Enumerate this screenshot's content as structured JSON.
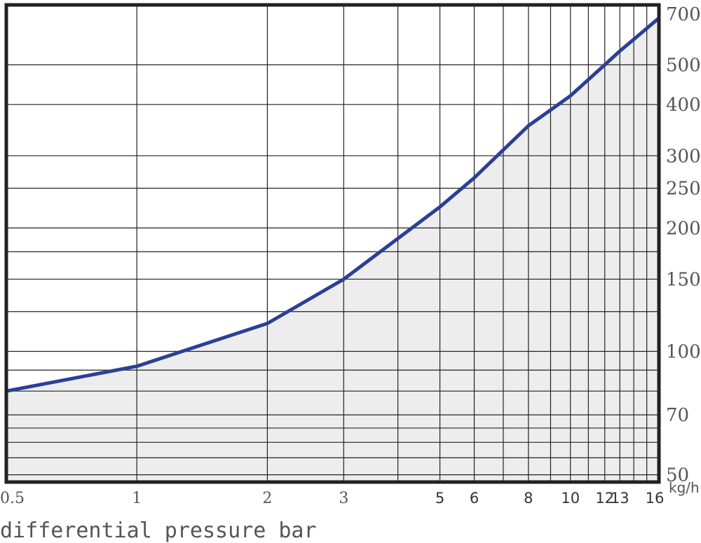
{
  "chart_data": {
    "type": "area",
    "x_scale": "log",
    "y_scale": "log",
    "grid": true,
    "xlim": [
      0.5,
      16
    ],
    "ylim": [
      48,
      700
    ],
    "x_ticks": [
      0.5,
      1,
      2,
      3,
      5,
      6,
      8,
      10,
      12,
      13,
      16
    ],
    "x_tick_labels": [
      "0.5",
      "1",
      "2",
      "3",
      "5",
      "6",
      "8",
      "10",
      "12",
      "13",
      "16"
    ],
    "y_ticks": [
      50,
      70,
      100,
      150,
      200,
      250,
      300,
      400,
      500,
      700
    ],
    "y_tick_labels": [
      "50",
      "70",
      "100",
      "150",
      "200",
      "250",
      "300",
      "400",
      "500",
      "700"
    ],
    "y_unit": "kg/h",
    "xlabel": "differential pressure bar",
    "series": [
      {
        "x": [
          0.5,
          1,
          2,
          3,
          5,
          6,
          8,
          10,
          12,
          13,
          16
        ],
        "values": [
          80,
          92,
          117,
          150,
          225,
          265,
          355,
          420,
          500,
          540,
          650
        ]
      }
    ],
    "colors": {
      "line": "#2b3f94",
      "fill": "#ededed",
      "grid": "#222222",
      "frame": "#222222"
    }
  }
}
